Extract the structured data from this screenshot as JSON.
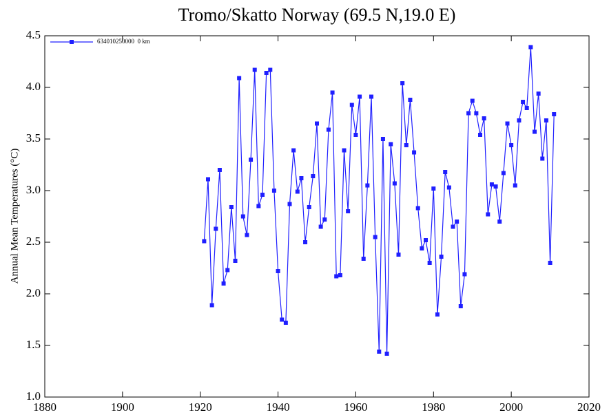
{
  "chart_data": {
    "type": "line",
    "title": "Tromo/Skatto Norway (69.5 N,19.0 E)",
    "ylabel": "Annual Mean Temperatures (°C)",
    "x": [
      1921,
      1922,
      1923,
      1924,
      1925,
      1926,
      1927,
      1928,
      1929,
      1930,
      1931,
      1932,
      1933,
      1934,
      1935,
      1936,
      1937,
      1938,
      1939,
      1940,
      1941,
      1942,
      1943,
      1944,
      1945,
      1946,
      1947,
      1948,
      1949,
      1950,
      1951,
      1952,
      1953,
      1954,
      1955,
      1956,
      1957,
      1958,
      1959,
      1960,
      1961,
      1962,
      1963,
      1964,
      1965,
      1966,
      1967,
      1968,
      1969,
      1970,
      1971,
      1972,
      1973,
      1974,
      1975,
      1976,
      1977,
      1978,
      1979,
      1980,
      1981,
      1982,
      1983,
      1984,
      1985,
      1986,
      1987,
      1988,
      1989,
      1990,
      1991,
      1992,
      1993,
      1994,
      1995,
      1996,
      1997,
      1998,
      1999,
      2000,
      2001,
      2002,
      2003,
      2004,
      2005,
      2006,
      2007,
      2008,
      2009,
      2010,
      2011
    ],
    "series": [
      {
        "name": "634010250000  0 km",
        "color": "#1f1fff",
        "values": [
          2.51,
          3.11,
          1.89,
          2.63,
          3.2,
          2.1,
          2.23,
          2.84,
          2.32,
          4.09,
          2.75,
          2.57,
          3.3,
          4.17,
          2.85,
          2.96,
          4.14,
          4.17,
          3.0,
          2.22,
          1.75,
          1.72,
          2.87,
          3.39,
          2.99,
          3.12,
          2.5,
          2.84,
          3.14,
          3.65,
          2.65,
          2.72,
          3.59,
          3.95,
          2.17,
          2.18,
          3.39,
          2.8,
          3.83,
          3.54,
          3.91,
          2.34,
          3.05,
          3.91,
          2.55,
          1.44,
          3.5,
          1.42,
          3.45,
          3.07,
          2.38,
          4.04,
          3.44,
          3.88,
          3.37,
          2.83,
          2.44,
          2.52,
          2.3,
          3.02,
          1.8,
          2.36,
          3.18,
          3.03,
          2.65,
          2.7,
          1.88,
          2.19,
          3.75,
          3.87,
          3.75,
          3.54,
          3.7,
          2.77,
          3.06,
          3.04,
          2.7,
          3.17,
          3.65,
          3.44,
          3.05,
          3.68,
          3.86,
          3.8,
          4.39,
          3.57,
          3.94,
          3.31,
          3.68,
          2.3,
          3.74
        ]
      }
    ],
    "xlim": [
      1880,
      2020
    ],
    "xticks": [
      1880,
      1900,
      1920,
      1940,
      1960,
      1980,
      2000,
      2020
    ],
    "ylim": [
      1.0,
      4.5
    ],
    "yticks": [
      {
        "value": 1.0,
        "label": "1.0"
      },
      1.5,
      {
        "value": 2.0,
        "label": "2.0"
      },
      2.5,
      {
        "value": 3.0,
        "label": "3.0"
      },
      3.5,
      {
        "value": 4.0,
        "label": "4.0"
      },
      4.5
    ],
    "legend": "upper left"
  }
}
